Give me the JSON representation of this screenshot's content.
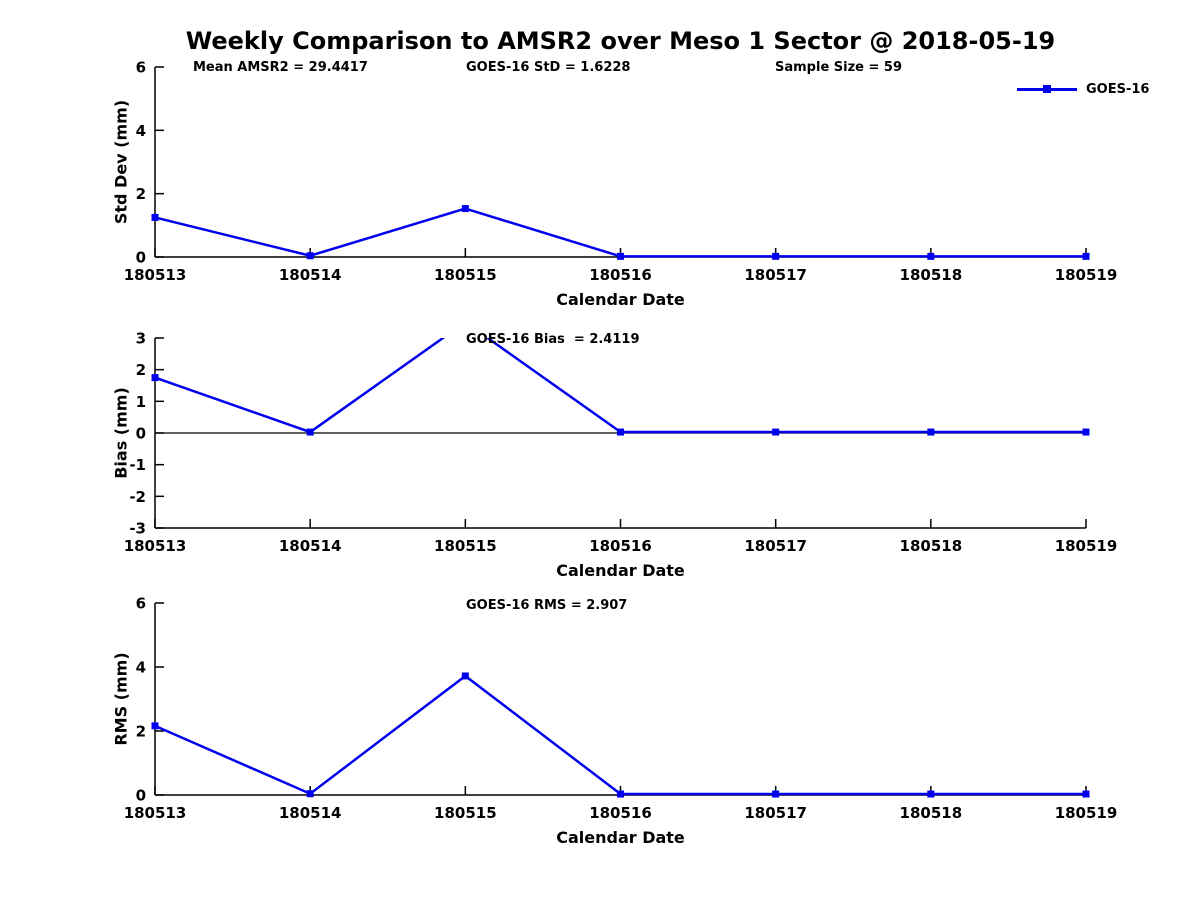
{
  "title": "Weekly Comparison to AMSR2 over Meso 1 Sector @ 2018-05-19",
  "legend": {
    "label": "GOES-16"
  },
  "colors": {
    "line": "#0000ee",
    "axis": "#000000",
    "text": "#000000",
    "background": "#ffffff"
  },
  "chart_data": [
    {
      "type": "line",
      "name": "std-dev",
      "ylabel": "Std Dev (mm)",
      "xlabel": "Calendar Date",
      "ylim": [
        0,
        6
      ],
      "yticks": [
        0,
        2,
        4,
        6
      ],
      "categories": [
        "180513",
        "180514",
        "180515",
        "180516",
        "180517",
        "180518",
        "180519"
      ],
      "series": [
        {
          "name": "GOES-16",
          "values": [
            1.25,
            0.04,
            1.53,
            0.02,
            0.02,
            0.02,
            0.02
          ]
        }
      ],
      "annotations": [
        "Mean AMSR2 = 29.4417",
        "GOES-16 StD = 1.6228",
        "Sample Size = 59"
      ],
      "zero_line": false,
      "grid": false,
      "legend_position": "top-right"
    },
    {
      "type": "line",
      "name": "bias",
      "ylabel": "Bias (mm)",
      "xlabel": "Calendar Date",
      "ylim": [
        -3,
        3
      ],
      "yticks": [
        -3,
        -2,
        -1,
        0,
        1,
        2,
        3
      ],
      "categories": [
        "180513",
        "180514",
        "180515",
        "180516",
        "180517",
        "180518",
        "180519"
      ],
      "series": [
        {
          "name": "GOES-16",
          "values": [
            1.75,
            0.03,
            3.5,
            0.03,
            0.03,
            0.03,
            0.03
          ]
        }
      ],
      "annotations": [
        "GOES-16 Bias  = 2.4119"
      ],
      "zero_line": true,
      "grid": false
    },
    {
      "type": "line",
      "name": "rms",
      "ylabel": "RMS (mm)",
      "xlabel": "Calendar Date",
      "ylim": [
        0,
        6
      ],
      "yticks": [
        0,
        2,
        4,
        6
      ],
      "categories": [
        "180513",
        "180514",
        "180515",
        "180516",
        "180517",
        "180518",
        "180519"
      ],
      "series": [
        {
          "name": "GOES-16",
          "values": [
            2.16,
            0.04,
            3.72,
            0.03,
            0.03,
            0.03,
            0.03
          ]
        }
      ],
      "annotations": [
        "GOES-16 RMS = 2.907"
      ],
      "zero_line": false,
      "grid": false
    }
  ]
}
